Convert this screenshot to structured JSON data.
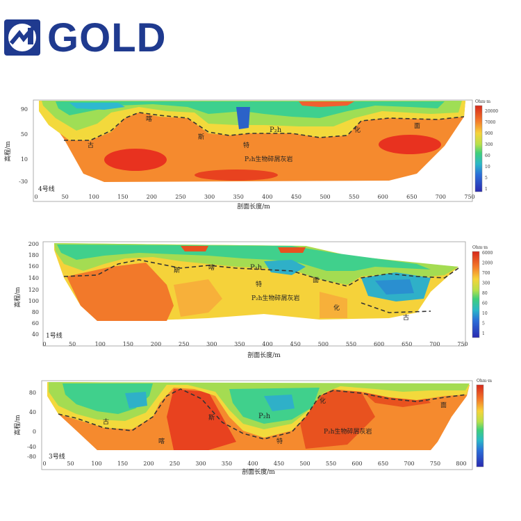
{
  "brand": {
    "name": "GOLD",
    "color": "#1f3a8f"
  },
  "chart_data": [
    {
      "type": "heatmap",
      "line_label": "4号线",
      "xlabel": "剖面长度/m",
      "ylabel": "高程/m",
      "xticks": [
        "0",
        "50",
        "100",
        "150",
        "200",
        "250",
        "300",
        "350",
        "400",
        "450",
        "500",
        "550",
        "600",
        "650",
        "700",
        "750"
      ],
      "yticks": [
        "90",
        "50",
        "10",
        "-30"
      ],
      "colorbar_title": "Ohm·m",
      "colorbar_ticks": [
        "20000",
        "7000",
        "900",
        "300",
        "60",
        "10",
        "5",
        "1"
      ],
      "annotations": [
        "P₂h",
        "P₂h生物碎屑灰岩",
        "喀",
        "斯",
        "特",
        "化",
        "面",
        "古"
      ]
    },
    {
      "type": "heatmap",
      "line_label": "1号线",
      "xlabel": "剖面长度/m",
      "ylabel": "高程/m",
      "xticks": [
        "0",
        "50",
        "100",
        "150",
        "200",
        "250",
        "300",
        "350",
        "400",
        "450",
        "500",
        "550",
        "600",
        "650",
        "700",
        "750"
      ],
      "yticks": [
        "200",
        "180",
        "160",
        "140",
        "120",
        "100",
        "80",
        "60",
        "40"
      ],
      "colorbar_title": "Ohm·m",
      "colorbar_ticks": [
        "6000",
        "2000",
        "700",
        "300",
        "80",
        "60",
        "10",
        "5",
        "1"
      ],
      "annotations": [
        "P₂h",
        "P₂h生物碎屑灰岩",
        "喀",
        "斯",
        "特",
        "化",
        "面",
        "古"
      ]
    },
    {
      "type": "heatmap",
      "line_label": "3号线",
      "xlabel": "剖面长度/m",
      "ylabel": "高程/m",
      "xticks": [
        "0",
        "50",
        "100",
        "150",
        "200",
        "250",
        "300",
        "350",
        "400",
        "450",
        "500",
        "550",
        "600",
        "650",
        "700",
        "750",
        "800"
      ],
      "yticks": [
        "80",
        "40",
        "0",
        "-40",
        "-80"
      ],
      "colorbar_title": "Ohm·m",
      "colorbar_ticks": [],
      "annotations": [
        "P₂h",
        "P₂h生物碎屑灰岩",
        "喀",
        "斯",
        "特",
        "化",
        "面",
        "古"
      ]
    }
  ]
}
